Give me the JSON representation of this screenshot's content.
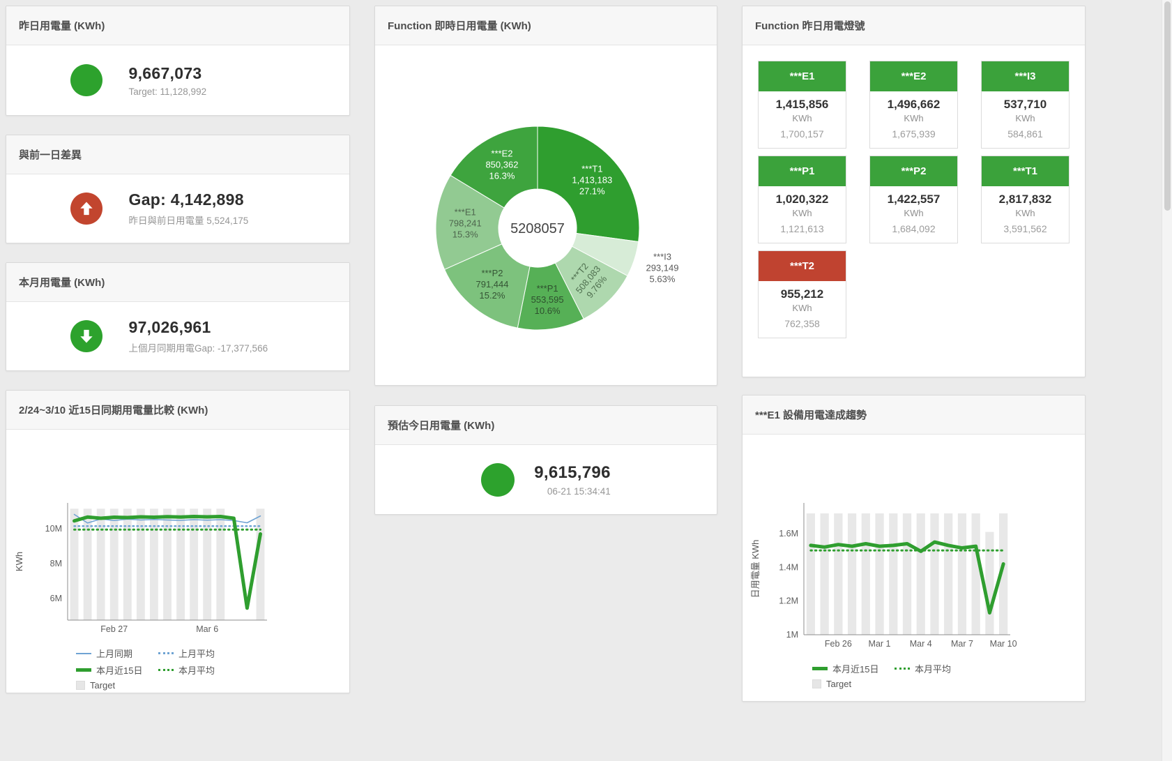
{
  "colors": {
    "green": "#2da22d",
    "red": "#c2452e",
    "tile_green": "#3ba23b",
    "tile_red": "#c04330",
    "blue": "#6fa3d3",
    "bar_gray": "#e8e8e8"
  },
  "cards": {
    "yesterday": {
      "title": "昨日用電量 (KWh)",
      "value": "9,667,073",
      "subtitle": "Target: 11,128,992"
    },
    "day_gap": {
      "title": "與前一日差異",
      "value": "Gap: 4,142,898",
      "subtitle": "昨日與前日用電量 5,524,175"
    },
    "month": {
      "title": "本月用電量 (KWh)",
      "value": "97,026,961",
      "subtitle": "上個月同期用電Gap: -17,377,566"
    },
    "compare": {
      "title": "2/24~3/10 近15日同期用電量比較 (KWh)"
    },
    "realtime": {
      "title": "Function 即時日用電量 (KWh)"
    },
    "estimate": {
      "title": "預估今日用電量 (KWh)",
      "value": "9,615,796",
      "subtitle": "06-21 15:34:41"
    },
    "lights": {
      "title": "Function 昨日用電燈號",
      "tiles": [
        {
          "name": "***E1",
          "value": "1,415,856",
          "unit": "KWh",
          "target": "1,700,157",
          "status": "green"
        },
        {
          "name": "***E2",
          "value": "1,496,662",
          "unit": "KWh",
          "target": "1,675,939",
          "status": "green"
        },
        {
          "name": "***I3",
          "value": "537,710",
          "unit": "KWh",
          "target": "584,861",
          "status": "green"
        },
        {
          "name": "***P1",
          "value": "1,020,322",
          "unit": "KWh",
          "target": "1,121,613",
          "status": "green"
        },
        {
          "name": "***P2",
          "value": "1,422,557",
          "unit": "KWh",
          "target": "1,684,092",
          "status": "green"
        },
        {
          "name": "***T1",
          "value": "2,817,832",
          "unit": "KWh",
          "target": "3,591,562",
          "status": "green"
        },
        {
          "name": "***T2",
          "value": "955,212",
          "unit": "KWh",
          "target": "762,358",
          "status": "red"
        }
      ]
    },
    "trend": {
      "title": "***E1 設備用電達成趨勢"
    }
  },
  "chart_data": [
    {
      "id": "realtime-pie",
      "type": "pie",
      "title": "Function 即時日用電量 (KWh)",
      "center_label": "5208057",
      "slices": [
        {
          "name": "***T1",
          "value": 1413183,
          "pct_label": "27.1%",
          "color": "#2f9e2f",
          "text_color": "#ffffff"
        },
        {
          "name": "***I3",
          "value": 293149,
          "pct_label": "5.63%",
          "color": "#d7ecd7",
          "text_color": "#5a5a5a",
          "outside": true
        },
        {
          "name": "***T2",
          "value": 508083,
          "pct_label": "9.76%",
          "color": "#aed8ae",
          "text_color": "#4f6f4f",
          "rotate": -50
        },
        {
          "name": "***P1",
          "value": 553595,
          "pct_label": "10.6%",
          "color": "#56b056",
          "text_color": "#2e4f2e"
        },
        {
          "name": "***P2",
          "value": 791444,
          "pct_label": "15.2%",
          "color": "#7dc27d",
          "text_color": "#355535"
        },
        {
          "name": "***E1",
          "value": 798241,
          "pct_label": "15.3%",
          "color": "#92ca92",
          "text_color": "#4e664e"
        },
        {
          "name": "***E2",
          "value": 850362,
          "pct_label": "16.3%",
          "color": "#3ea43e",
          "text_color": "#ffffff"
        }
      ]
    },
    {
      "id": "compare-chart",
      "type": "line",
      "title": "2/24~3/10 近15日同期用電量比較 (KWh)",
      "ylabel": "KWh",
      "x": [
        "2/24",
        "2/25",
        "2/26",
        "2/27",
        "2/28",
        "3/1",
        "3/2",
        "3/3",
        "3/4",
        "3/5",
        "3/6",
        "3/7",
        "3/8",
        "3/9",
        "3/10"
      ],
      "x_ticks": [
        {
          "index": 3,
          "label": "Feb 27"
        },
        {
          "index": 10,
          "label": "Mar 6"
        }
      ],
      "y_ticks": [
        {
          "value": 6000000,
          "label": "6M"
        },
        {
          "value": 8000000,
          "label": "8M"
        },
        {
          "value": 10000000,
          "label": "10M"
        }
      ],
      "y_range": [
        4760000,
        11480000
      ],
      "bars": {
        "name": "Target",
        "color": "#e8e8e8",
        "values": [
          11150000,
          11150000,
          11150000,
          11150000,
          11150000,
          11150000,
          11150000,
          11150000,
          11150000,
          11150000,
          11150000,
          11150000,
          null,
          null,
          11150000
        ]
      },
      "series": [
        {
          "name": "上月同期",
          "color": "#6fa3d3",
          "width": 1.6,
          "values": [
            10820000,
            10330000,
            10560000,
            10470000,
            10550000,
            10500000,
            10530000,
            10500000,
            10480000,
            10520000,
            10490000,
            10520000,
            10470000,
            10340000,
            10730000
          ]
        },
        {
          "name": "上月平均",
          "color": "#6fa3d3",
          "width": 2.5,
          "dash": "1.5,4.5",
          "values": [
            10150000,
            10150000,
            10150000,
            10150000,
            10150000,
            10150000,
            10150000,
            10150000,
            10150000,
            10150000,
            10150000,
            10150000,
            10150000,
            10150000,
            10150000
          ]
        },
        {
          "name": "本月平均",
          "color": "#2f9e2f",
          "width": 3,
          "dash": "1.5,5",
          "values": [
            9950000,
            9950000,
            9950000,
            9950000,
            9950000,
            9950000,
            9950000,
            9950000,
            9950000,
            9950000,
            9950000,
            9950000,
            9950000,
            9950000,
            9950000
          ]
        },
        {
          "name": "本月近15日",
          "color": "#2f9e2f",
          "width": 5,
          "values": [
            10450000,
            10670000,
            10600000,
            10660000,
            10640000,
            10680000,
            10660000,
            10690000,
            10670000,
            10700000,
            10680000,
            10700000,
            10600000,
            5450000,
            9700000
          ]
        }
      ],
      "legend": [
        {
          "label": "上月同期",
          "swatch": "line",
          "color": "#6fa3d3"
        },
        {
          "label": "上月平均",
          "swatch": "dots",
          "color": "#6fa3d3"
        },
        {
          "label": "本月近15日",
          "swatch": "thick",
          "color": "#2f9e2f"
        },
        {
          "label": "本月平均",
          "swatch": "dots",
          "color": "#2f9e2f"
        },
        {
          "label": "Target",
          "swatch": "box",
          "color": "#e6e6e6"
        }
      ]
    },
    {
      "id": "trend-chart",
      "type": "line",
      "title": "***E1 設備用電達成趨勢",
      "ylabel": "日用電量 KWh",
      "x": [
        "2/24",
        "2/25",
        "2/26",
        "2/27",
        "2/28",
        "3/1",
        "3/2",
        "3/3",
        "3/4",
        "3/5",
        "3/6",
        "3/7",
        "3/8",
        "3/9",
        "3/10"
      ],
      "x_ticks": [
        {
          "index": 2,
          "label": "Feb 26"
        },
        {
          "index": 5,
          "label": "Mar 1"
        },
        {
          "index": 8,
          "label": "Mar 4"
        },
        {
          "index": 11,
          "label": "Mar 7"
        },
        {
          "index": 14,
          "label": "Mar 10"
        }
      ],
      "y_ticks": [
        {
          "value": 1000000,
          "label": "1M"
        },
        {
          "value": 1200000,
          "label": "1.2M"
        },
        {
          "value": 1400000,
          "label": "1.4M"
        },
        {
          "value": 1600000,
          "label": "1.6M"
        }
      ],
      "y_range": [
        1000000,
        1782000
      ],
      "bars": {
        "name": "Target",
        "color": "#e8e8e8",
        "values": [
          1720000,
          1720000,
          1720000,
          1720000,
          1720000,
          1720000,
          1720000,
          1720000,
          1720000,
          1720000,
          1720000,
          1720000,
          1720000,
          1610000,
          1720000
        ]
      },
      "series": [
        {
          "name": "本月平均",
          "color": "#2f9e2f",
          "width": 3,
          "dash": "1.5,5",
          "values": [
            1500000,
            1500000,
            1500000,
            1500000,
            1500000,
            1500000,
            1500000,
            1500000,
            1500000,
            1500000,
            1500000,
            1500000,
            1500000,
            1500000,
            1500000
          ]
        },
        {
          "name": "本月近15日",
          "color": "#2f9e2f",
          "width": 5,
          "values": [
            1530000,
            1520000,
            1535000,
            1525000,
            1540000,
            1525000,
            1530000,
            1540000,
            1495000,
            1550000,
            1530000,
            1515000,
            1525000,
            1130000,
            1420000
          ]
        }
      ],
      "legend": [
        {
          "label": "本月近15日",
          "swatch": "thick",
          "color": "#2f9e2f"
        },
        {
          "label": "本月平均",
          "swatch": "dots",
          "color": "#2f9e2f"
        },
        {
          "label": "Target",
          "swatch": "box",
          "color": "#e6e6e6"
        }
      ]
    }
  ]
}
